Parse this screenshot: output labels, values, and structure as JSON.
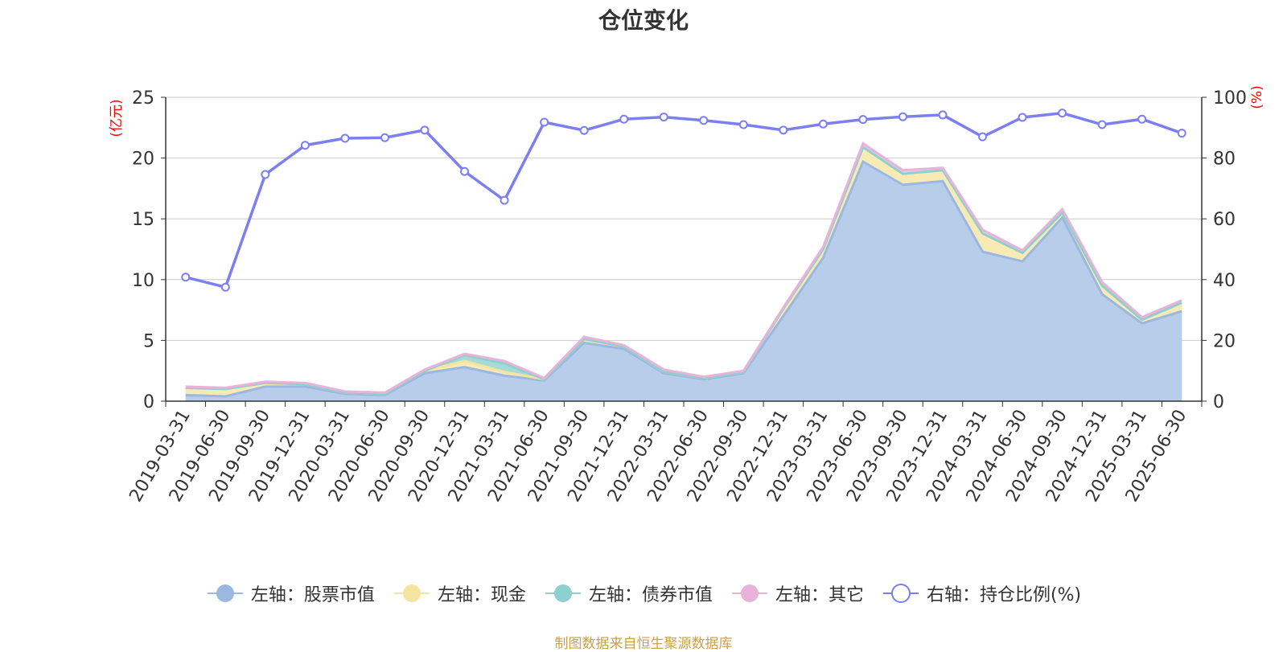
{
  "chart_data": {
    "type": "area",
    "title": "仓位变化",
    "y_left_label": "(亿元)",
    "y_right_label": "(%)",
    "ylim_left": [
      0,
      25
    ],
    "ylim_right": [
      0,
      100
    ],
    "yticks_left": [
      "0",
      "5",
      "10",
      "15",
      "20",
      "25"
    ],
    "yticks_right": [
      "0",
      "20",
      "40",
      "60",
      "80",
      "100"
    ],
    "grid": true,
    "legend_position": "bottom",
    "categories": [
      "2019-03-31",
      "2019-06-30",
      "2019-09-30",
      "2019-12-31",
      "2020-03-31",
      "2020-06-30",
      "2020-09-30",
      "2020-12-31",
      "2021-03-31",
      "2021-06-30",
      "2021-09-30",
      "2021-12-31",
      "2022-03-31",
      "2022-06-30",
      "2022-09-30",
      "2022-12-31",
      "2023-03-31",
      "2023-06-30",
      "2023-09-30",
      "2023-12-31",
      "2024-03-31",
      "2024-06-30",
      "2024-09-30",
      "2024-12-31",
      "2025-03-31",
      "2025-06-30"
    ],
    "series": [
      {
        "name": "左轴：股票市值",
        "axis": "left",
        "color": "#9bb8e0",
        "fill": "#b8cdea",
        "values": [
          0.5,
          0.4,
          1.2,
          1.2,
          0.6,
          0.5,
          2.3,
          2.8,
          2.1,
          1.7,
          4.8,
          4.3,
          2.3,
          1.8,
          2.3,
          7.0,
          11.8,
          19.7,
          17.8,
          18.1,
          12.3,
          11.5,
          15.1,
          8.8,
          6.4,
          7.4
        ]
      },
      {
        "name": "左轴：现金",
        "axis": "left",
        "color": "#f5e3a0",
        "fill": "#f8eab4",
        "values": [
          0.6,
          0.6,
          0.3,
          0.2,
          0.1,
          0.1,
          0.2,
          0.5,
          0.3,
          0.1,
          0.3,
          0.2,
          0.1,
          0.1,
          0.1,
          0.6,
          0.7,
          1.2,
          0.9,
          0.9,
          1.5,
          0.7,
          0.4,
          0.7,
          0.3,
          0.7
        ]
      },
      {
        "name": "左轴：债券市值",
        "axis": "left",
        "color": "#8ecfcf",
        "fill": "#a6dad8",
        "values": [
          0,
          0,
          0,
          0,
          0,
          0,
          0,
          0.5,
          0.7,
          0,
          0,
          0,
          0,
          0,
          0,
          0,
          0,
          0,
          0,
          0,
          0,
          0,
          0,
          0,
          0,
          0
        ]
      },
      {
        "name": "左轴：其它",
        "axis": "left",
        "color": "#e8b3d8",
        "fill": "#f0cbe3",
        "values": [
          0.1,
          0.1,
          0.1,
          0.1,
          0.1,
          0.1,
          0.1,
          0.1,
          0.2,
          0.1,
          0.2,
          0.1,
          0.2,
          0.1,
          0.1,
          0.1,
          0.2,
          0.3,
          0.3,
          0.2,
          0.3,
          0.2,
          0.3,
          0.3,
          0.2,
          0.2
        ]
      },
      {
        "name": "右轴：持仓比例(%)",
        "axis": "right",
        "color": "#7b7ff0",
        "values": [
          40.8,
          37.5,
          74.6,
          84.2,
          86.5,
          86.7,
          89.2,
          75.6,
          66.1,
          91.8,
          89.1,
          92.8,
          93.5,
          92.4,
          91.0,
          89.2,
          91.2,
          92.7,
          93.6,
          94.2,
          87.0,
          93.4,
          94.8,
          91.0,
          92.8,
          88.2
        ]
      }
    ]
  },
  "footer": {
    "text": "制图数据来自恒生聚源数据库"
  },
  "colors": {
    "axis_unit": "#ff0000",
    "footer": "#c8a24a",
    "grid": "#cccccc",
    "axis": "#333333"
  }
}
